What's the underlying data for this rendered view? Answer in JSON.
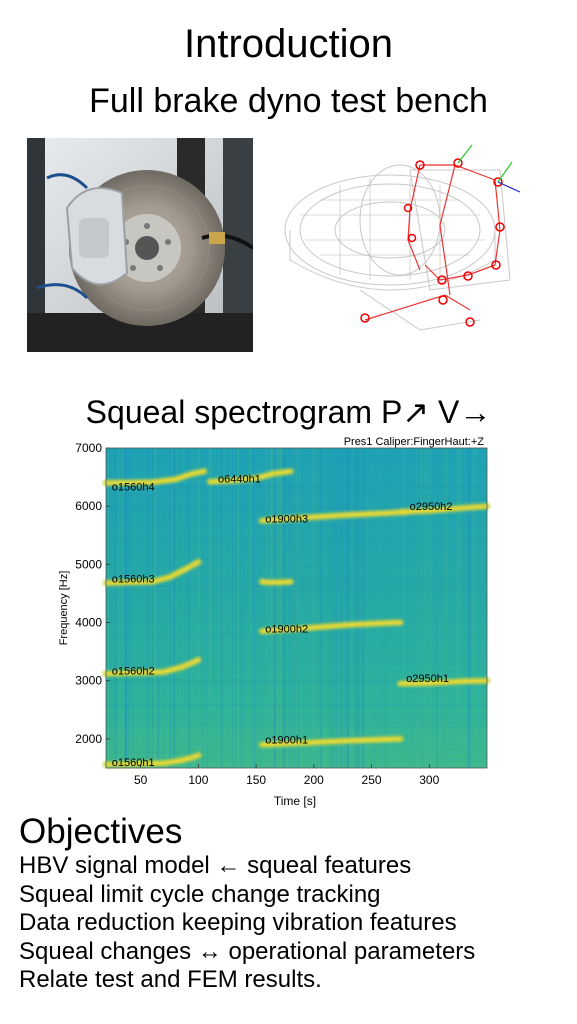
{
  "header": {
    "title": "Introduction",
    "subtitle": "Full brake dyno test bench"
  },
  "images": {
    "photo_icon": "brake-disc-photo",
    "fem_icon": "fem-brake-model-icon"
  },
  "spectrogram": {
    "heading": "Squeal spectrogram P↗ V→"
  },
  "chart_data": {
    "type": "heatmap",
    "title": "Pres1 Caliper:FingerHaut:+Z",
    "xlabel": "Time [s]",
    "ylabel": "Frequency [Hz]",
    "xlim": [
      20,
      350
    ],
    "ylim": [
      1500,
      7000
    ],
    "x_ticks": [
      50,
      100,
      150,
      200,
      250,
      300
    ],
    "y_ticks": [
      2000,
      3000,
      4000,
      5000,
      6000,
      7000
    ],
    "colormap": [
      "#1d86c0",
      "#1fa6ab",
      "#56bf7a",
      "#e6c93a",
      "#f7e02f"
    ],
    "annotations": [
      {
        "label": "o1560h1",
        "x": 25,
        "y": 1600
      },
      {
        "label": "o1560h2",
        "x": 25,
        "y": 3180
      },
      {
        "label": "o1560h3",
        "x": 25,
        "y": 4760
      },
      {
        "label": "o1560h4",
        "x": 25,
        "y": 6340
      },
      {
        "label": "o6440h1",
        "x": 117,
        "y": 6480
      },
      {
        "label": "o1900h1",
        "x": 158,
        "y": 1990
      },
      {
        "label": "o1900h2",
        "x": 158,
        "y": 3900
      },
      {
        "label": "o1900h3",
        "x": 158,
        "y": 5790
      },
      {
        "label": "o2950h1",
        "x": 280,
        "y": 3050
      },
      {
        "label": "o2950h2",
        "x": 283,
        "y": 6000
      }
    ],
    "series": [
      {
        "name": "o1560h1",
        "x": [
          20,
          70,
          85,
          95,
          100
        ],
        "y": [
          1560,
          1580,
          1630,
          1680,
          1720
        ]
      },
      {
        "name": "o1560h2",
        "x": [
          20,
          70,
          85,
          95,
          100
        ],
        "y": [
          3120,
          3150,
          3230,
          3310,
          3360
        ]
      },
      {
        "name": "o1560h3",
        "x": [
          20,
          60,
          75,
          90,
          100
        ],
        "y": [
          4680,
          4700,
          4780,
          4930,
          5040
        ]
      },
      {
        "name": "o1560h4",
        "x": [
          20,
          60,
          80,
          95,
          105
        ],
        "y": [
          6400,
          6410,
          6460,
          6560,
          6600
        ]
      },
      {
        "name": "o6440h1",
        "x": [
          110,
          130,
          150,
          165,
          180
        ],
        "y": [
          6420,
          6440,
          6480,
          6560,
          6600
        ]
      },
      {
        "name": "o1900h1",
        "x": [
          155,
          190,
          230,
          260,
          275
        ],
        "y": [
          1900,
          1930,
          1970,
          1990,
          2000
        ]
      },
      {
        "name": "o1900h2",
        "x": [
          155,
          190,
          230,
          260,
          275
        ],
        "y": [
          3850,
          3900,
          3960,
          3990,
          4000
        ]
      },
      {
        "name": "o1900h3",
        "x": [
          155,
          190,
          230,
          260,
          280
        ],
        "y": [
          5750,
          5800,
          5850,
          5880,
          5900
        ]
      },
      {
        "name": "o2950h1",
        "x": [
          275,
          300,
          330,
          350
        ],
        "y": [
          2950,
          2960,
          2990,
          3000
        ]
      },
      {
        "name": "o2950h2",
        "x": [
          275,
          300,
          330,
          350
        ],
        "y": [
          5900,
          5920,
          5970,
          6000
        ]
      },
      {
        "name": "o1900-partial",
        "x": [
          155,
          160,
          170,
          180
        ],
        "y": [
          4700,
          4690,
          4690,
          4700
        ]
      }
    ]
  },
  "objectives": {
    "heading": "Objectives",
    "items": [
      "HBV signal model ← squeal features",
      "Squeal limit cycle change tracking",
      "Data reduction keeping vibration features",
      "Squeal changes ↔ operational parameters",
      "Relate test and FEM results."
    ]
  }
}
